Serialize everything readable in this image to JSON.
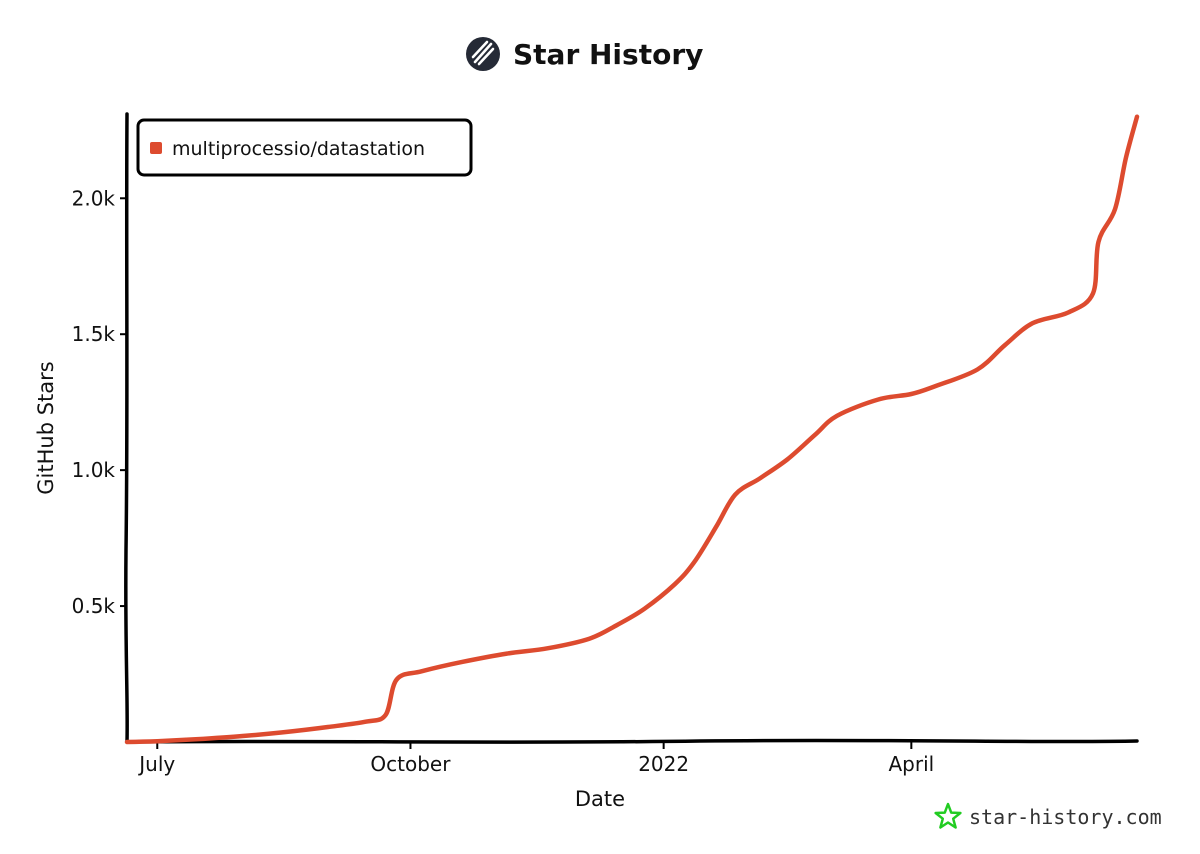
{
  "header": {
    "title": "Star History",
    "logo_icon": "star-history-logo-icon"
  },
  "watermark": {
    "text": "star-history.com",
    "icon": "star-outline-icon",
    "icon_color": "#22cc22"
  },
  "colors": {
    "series": "#dd4b2f",
    "axis": "#000000"
  },
  "chart_data": {
    "type": "line",
    "xlabel": "Date",
    "ylabel": "GitHub Stars",
    "x_ticks": [
      {
        "label": "July",
        "date": "2021-07-01"
      },
      {
        "label": "October",
        "date": "2021-10-01"
      },
      {
        "label": "2022",
        "date": "2022-01-01"
      },
      {
        "label": "April",
        "date": "2022-04-01"
      }
    ],
    "y_ticks": [
      {
        "label": "0.5k",
        "value": 500
      },
      {
        "label": "1.0k",
        "value": 1000
      },
      {
        "label": "1.5k",
        "value": 1500
      },
      {
        "label": "2.0k",
        "value": 2000
      }
    ],
    "xlim": [
      "2021-06-20",
      "2022-06-22"
    ],
    "ylim": [
      0,
      2310
    ],
    "legend": {
      "position": "top-left",
      "entries": [
        "multiprocessio/datastation"
      ]
    },
    "grid": false,
    "series": [
      {
        "name": "multiprocessio/datastation",
        "points": [
          {
            "date": "2021-06-20",
            "value": 0
          },
          {
            "date": "2021-07-01",
            "value": 3
          },
          {
            "date": "2021-07-15",
            "value": 10
          },
          {
            "date": "2021-08-01",
            "value": 22
          },
          {
            "date": "2021-08-15",
            "value": 35
          },
          {
            "date": "2021-09-01",
            "value": 55
          },
          {
            "date": "2021-09-15",
            "value": 75
          },
          {
            "date": "2021-09-22",
            "value": 100
          },
          {
            "date": "2021-09-26",
            "value": 230
          },
          {
            "date": "2021-10-05",
            "value": 260
          },
          {
            "date": "2021-10-20",
            "value": 295
          },
          {
            "date": "2021-11-05",
            "value": 325
          },
          {
            "date": "2021-11-20",
            "value": 345
          },
          {
            "date": "2021-12-05",
            "value": 380
          },
          {
            "date": "2021-12-15",
            "value": 430
          },
          {
            "date": "2021-12-25",
            "value": 490
          },
          {
            "date": "2022-01-05",
            "value": 580
          },
          {
            "date": "2022-01-12",
            "value": 660
          },
          {
            "date": "2022-01-20",
            "value": 790
          },
          {
            "date": "2022-01-27",
            "value": 910
          },
          {
            "date": "2022-02-05",
            "value": 970
          },
          {
            "date": "2022-02-15",
            "value": 1040
          },
          {
            "date": "2022-02-25",
            "value": 1130
          },
          {
            "date": "2022-03-05",
            "value": 1200
          },
          {
            "date": "2022-03-20",
            "value": 1260
          },
          {
            "date": "2022-04-01",
            "value": 1280
          },
          {
            "date": "2022-04-10",
            "value": 1310
          },
          {
            "date": "2022-04-25",
            "value": 1370
          },
          {
            "date": "2022-05-05",
            "value": 1460
          },
          {
            "date": "2022-05-15",
            "value": 1540
          },
          {
            "date": "2022-05-28",
            "value": 1580
          },
          {
            "date": "2022-06-06",
            "value": 1650
          },
          {
            "date": "2022-06-08",
            "value": 1840
          },
          {
            "date": "2022-06-14",
            "value": 1960
          },
          {
            "date": "2022-06-18",
            "value": 2150
          },
          {
            "date": "2022-06-22",
            "value": 2300
          }
        ]
      }
    ]
  }
}
